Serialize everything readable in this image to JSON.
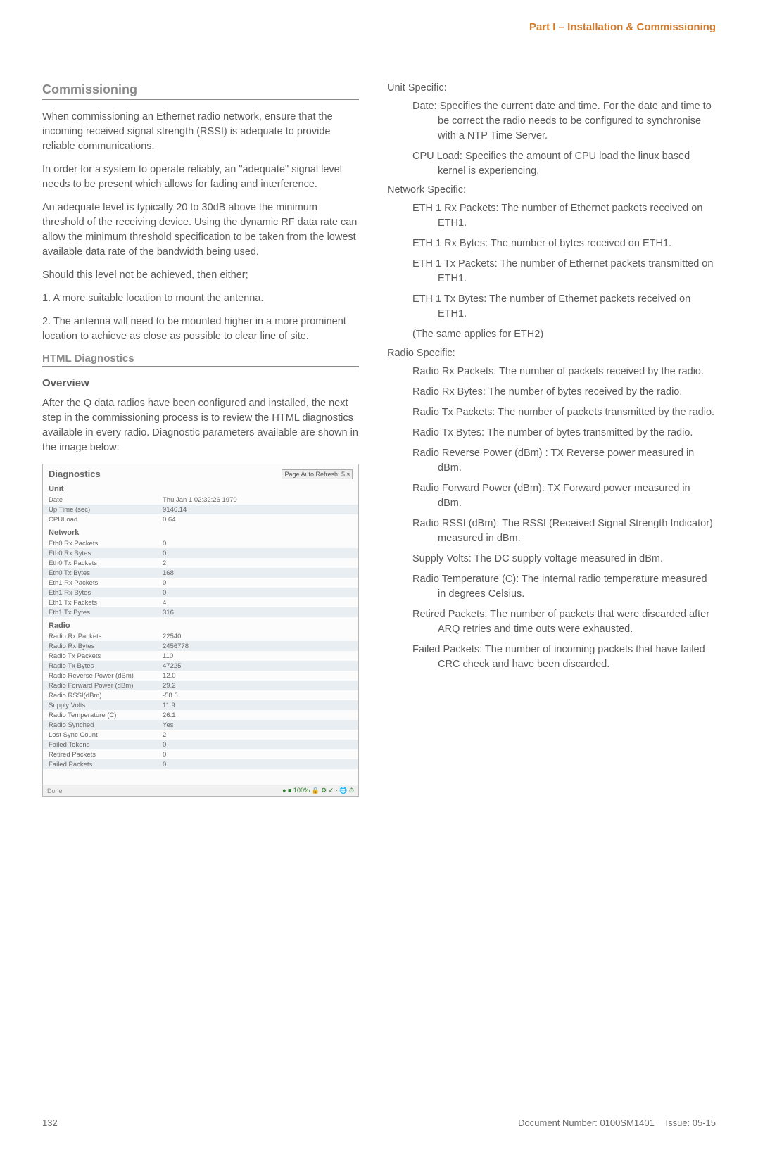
{
  "header": {
    "part": "Part I – Installation & Commissioning"
  },
  "left": {
    "commissioning_title": "Commissioning",
    "p1": "When commissioning an Ethernet radio network, ensure that the incoming received signal strength (RSSI) is adequate to provide reliable communications.",
    "p2": "In order for a system to operate reliably, an \"adequate\" signal level needs to be present which allows for fading and interference.",
    "p3": "An adequate level is typically 20 to 30dB above the minimum threshold of the receiving device. Using the dynamic RF data rate can allow the minimum threshold specification to be taken from the lowest available data rate of the bandwidth being used.",
    "p4": "Should this level not be achieved, then either;",
    "p5": "1. A more suitable location to mount the antenna.",
    "p6": "2. The antenna will need to be mounted higher in a more prominent location to achieve as close as possible to clear line of site.",
    "html_diag_title": "HTML Diagnostics",
    "overview_title": "Overview",
    "overview_body": "After the Q data radios have been configured and installed, the next step in the commissioning process is to review the HTML diagnostics available in every radio. Diagnostic parameters available are shown in the image below:"
  },
  "diag": {
    "title": "Diagnostics",
    "refresh": "Page Auto Refresh: 5 s",
    "bottom_status": "● ■ 100% 🔒 ⚙ ✓ · 🌐 ⏱",
    "bottom_left": "Done",
    "sections": [
      {
        "label": "Unit",
        "rows": [
          {
            "k": "Date",
            "v": "Thu Jan 1 02:32:26 1970"
          },
          {
            "k": "Up Time (sec)",
            "v": "9146.14"
          },
          {
            "k": "CPULoad",
            "v": "0.64"
          }
        ]
      },
      {
        "label": "Network",
        "rows": [
          {
            "k": "Eth0 Rx Packets",
            "v": "0"
          },
          {
            "k": "Eth0 Rx Bytes",
            "v": "0"
          },
          {
            "k": "Eth0 Tx Packets",
            "v": "2"
          },
          {
            "k": "Eth0 Tx Bytes",
            "v": "168"
          },
          {
            "k": "Eth1 Rx Packets",
            "v": "0"
          },
          {
            "k": "Eth1 Rx Bytes",
            "v": "0"
          },
          {
            "k": "Eth1 Tx Packets",
            "v": "4"
          },
          {
            "k": "Eth1 Tx Bytes",
            "v": "316"
          }
        ]
      },
      {
        "label": "Radio",
        "rows": [
          {
            "k": "Radio Rx Packets",
            "v": "22540"
          },
          {
            "k": "Radio Rx Bytes",
            "v": "2456778"
          },
          {
            "k": "Radio Tx Packets",
            "v": "110"
          },
          {
            "k": "Radio Tx Bytes",
            "v": "47225"
          },
          {
            "k": "Radio Reverse Power (dBm)",
            "v": "12.0"
          },
          {
            "k": "Radio Forward Power (dBm)",
            "v": "29.2"
          },
          {
            "k": "Radio RSSI(dBm)",
            "v": "-58.6"
          },
          {
            "k": "Supply Volts",
            "v": "11.9"
          },
          {
            "k": "Radio Temperature (C)",
            "v": "26.1"
          },
          {
            "k": "Radio Synched",
            "v": "Yes"
          },
          {
            "k": "Lost Sync Count",
            "v": "2"
          },
          {
            "k": "Failed Tokens",
            "v": "0"
          },
          {
            "k": "Retired Packets",
            "v": "0"
          },
          {
            "k": "Failed Packets",
            "v": "0"
          }
        ]
      }
    ]
  },
  "right": {
    "unit_heading": "Unit Specific:",
    "unit_items": [
      {
        "term": "Date:",
        "body": "Specifies the current date and time. For the date and time to be correct the radio needs to be configured to synchronise with a NTP Time Server."
      },
      {
        "term": "CPU Load:",
        "body": "Specifies the amount of CPU load the linux based kernel is experiencing."
      }
    ],
    "network_heading": "Network Specific:",
    "network_items": [
      {
        "term": "ETH 1 Rx Packets:",
        "body": "The number of Ethernet packets received on ETH1."
      },
      {
        "term": "ETH 1 Rx Bytes:",
        "body": "The number of bytes received on ETH1."
      },
      {
        "term": "ETH 1 Tx Packets:",
        "body": "The number of Ethernet packets transmitted on ETH1."
      },
      {
        "term": "ETH 1 Tx Bytes:",
        "body": "The number of Ethernet packets received on ETH1."
      }
    ],
    "network_note": "(The same applies for ETH2)",
    "radio_heading": "Radio Specific:",
    "radio_items": [
      {
        "term": "Radio Rx Packets:",
        "body": "The number of packets received by the radio."
      },
      {
        "term": "Radio Rx Bytes:",
        "body": "The number of bytes received by the radio."
      },
      {
        "term": "Radio Tx Packets:",
        "body": "The number of packets transmitted by the radio."
      },
      {
        "term": "Radio Tx Bytes:",
        "body": "The number of bytes transmitted by the radio."
      },
      {
        "term": "Radio Reverse Power (dBm) :",
        "body": "TX Reverse power measured in dBm."
      },
      {
        "term": "Radio Forward Power (dBm):",
        "body": "TX Forward power measured in dBm."
      },
      {
        "term": "Radio RSSI (dBm):",
        "body": "The RSSI (Received Signal Strength Indicator) measured in dBm."
      },
      {
        "term": "Supply Volts:",
        "body": "The DC supply voltage measured in dBm."
      },
      {
        "term": "Radio Temperature (C):",
        "body": "The internal radio temperature measured in degrees Celsius."
      },
      {
        "term": "Retired Packets:",
        "body": "The number of packets that were discarded after ARQ retries and time outs were exhausted."
      },
      {
        "term": "Failed Packets:",
        "body": "The number of incoming packets that have failed CRC check and have been discarded."
      }
    ]
  },
  "footer": {
    "page_num": "132",
    "doc_num": "Document Number: 0100SM1401",
    "issue": "Issue: 05-15"
  }
}
